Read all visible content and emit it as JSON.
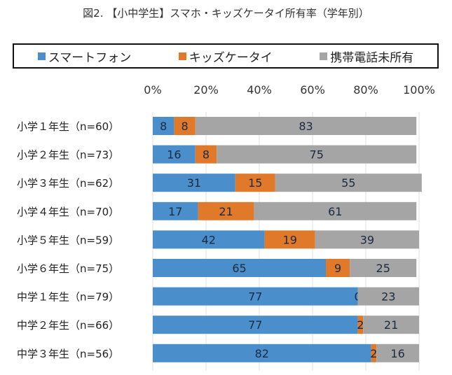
{
  "chart_data": {
    "type": "bar",
    "orientation": "horizontal",
    "stacked": true,
    "title": "図2. 【小中学生】スマホ・キッズケータイ所有率（学年別）",
    "categories": [
      "小学１年生（n=60）",
      "小学２年生（n=73）",
      "小学３年生（n=62）",
      "小学４年生（n=70）",
      "小学５年生（n=59）",
      "小学６年生（n=75）",
      "中学１年生（n=79）",
      "中学２年生（n=66）",
      "中学３年生（n=56）"
    ],
    "series": [
      {
        "name": "スマートフォン",
        "color": "#4a8fcc",
        "values": [
          8,
          16,
          31,
          17,
          42,
          65,
          77,
          77,
          82
        ]
      },
      {
        "name": "キッズケータイ",
        "color": "#e07a2a",
        "values": [
          8,
          8,
          15,
          21,
          19,
          9,
          0,
          2,
          2
        ]
      },
      {
        "name": "携帯電話未所有",
        "color": "#a5a5a5",
        "values": [
          83,
          75,
          55,
          61,
          39,
          25,
          23,
          21,
          16
        ]
      }
    ],
    "xlim": [
      0,
      100
    ],
    "xticks": [
      "0%",
      "20%",
      "40%",
      "60%",
      "80%",
      "100%"
    ],
    "grid": true,
    "legend_position": "top",
    "data_labels": true
  }
}
